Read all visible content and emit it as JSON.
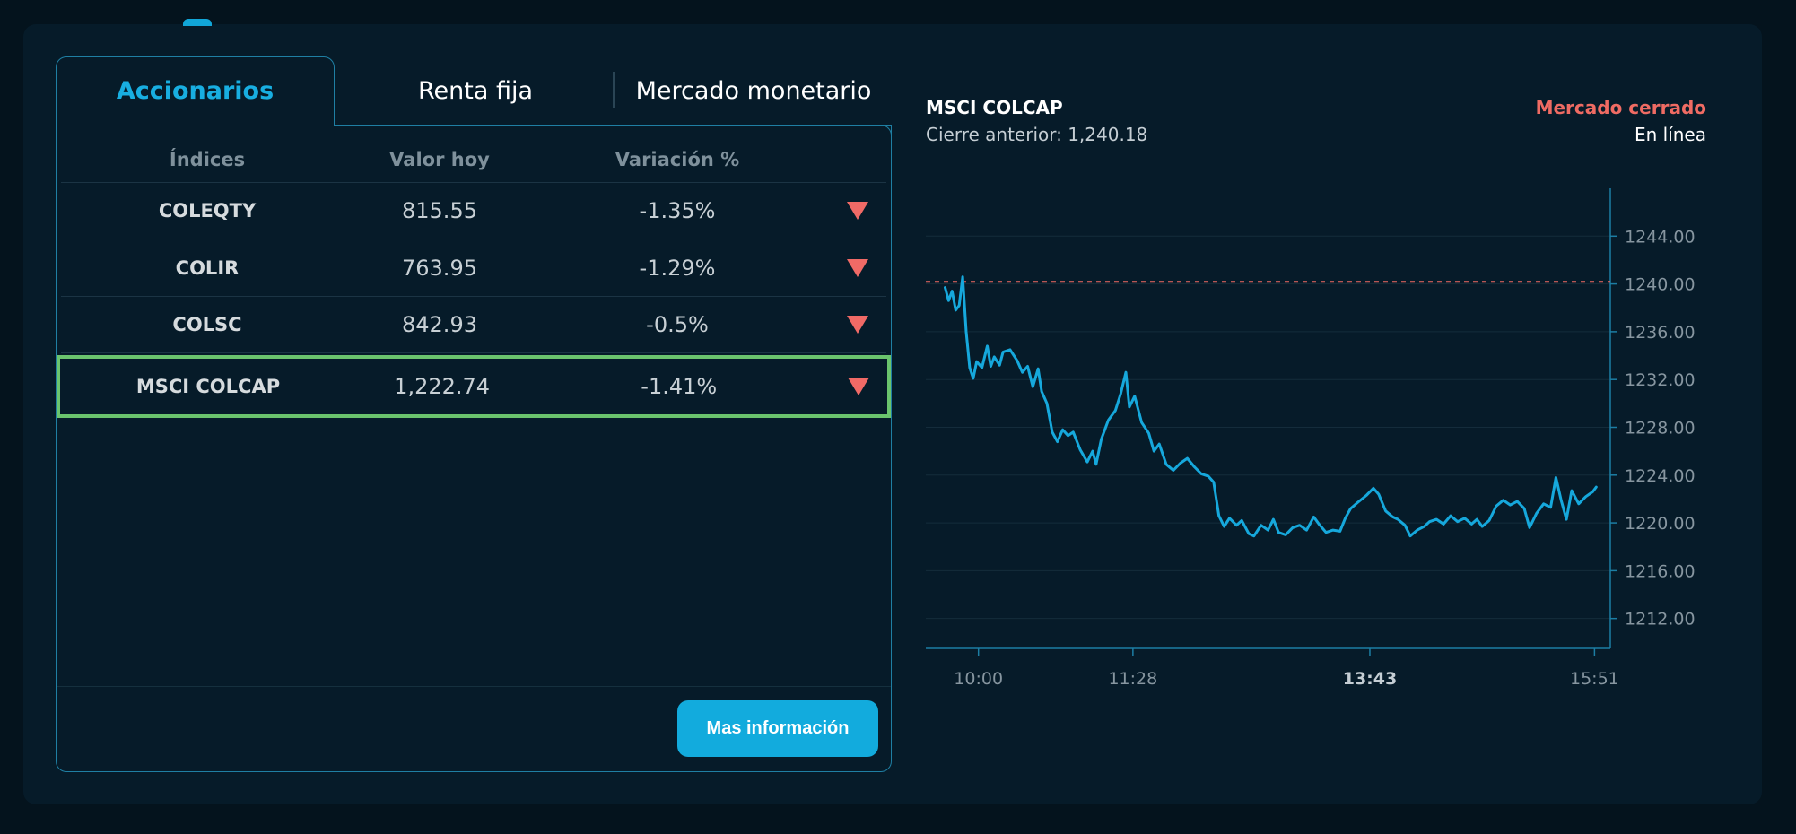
{
  "tabs": [
    {
      "label": "Accionarios",
      "active": true
    },
    {
      "label": "Renta fija",
      "active": false
    },
    {
      "label": "Mercado monetario",
      "active": false
    }
  ],
  "table": {
    "headers": [
      "Índices",
      "Valor hoy",
      "Variación %"
    ],
    "rows": [
      {
        "index": "COLEQTY",
        "value": "815.55",
        "variation": "-1.35%",
        "trend": "down"
      },
      {
        "index": "COLIR",
        "value": "763.95",
        "variation": "-1.29%",
        "trend": "down"
      },
      {
        "index": "COLSC",
        "value": "842.93",
        "variation": "-0.5%",
        "trend": "down"
      },
      {
        "index": "MSCI COLCAP",
        "value": "1,222.74",
        "variation": "-1.41%",
        "trend": "down",
        "selected": true
      }
    ],
    "more_button": "Mas información"
  },
  "chart_header": {
    "title": "MSCI COLCAP",
    "previous_close": "Cierre anterior: 1,240.18",
    "market_status": "Mercado cerrado",
    "online_label": "En línea"
  },
  "colors": {
    "line": "#16a8dc",
    "reference": "#ef6b63",
    "accent": "#18aee1",
    "down": "#f06a66",
    "selected_border": "#6ac46d"
  },
  "chart_data": {
    "type": "line",
    "title": "MSCI COLCAP",
    "reference_line": 1240.18,
    "ylim": [
      1211,
      1248
    ],
    "y_ticks": [
      "1212.00",
      "1216.00",
      "1220.00",
      "1224.00",
      "1228.00",
      "1232.00",
      "1236.00",
      "1240.00",
      "1244.00"
    ],
    "x_ticks": [
      {
        "label": "10:00",
        "time": "10:00",
        "bold": false
      },
      {
        "label": "11:28",
        "time": "11:28",
        "bold": false
      },
      {
        "label": "13:43",
        "time": "13:43",
        "bold": true
      },
      {
        "label": "15:51",
        "time": "15:51",
        "bold": false
      }
    ],
    "grid": true,
    "series": [
      {
        "values": [
          [
            "09:41",
            1239.7
          ],
          [
            "09:43",
            1238.6
          ],
          [
            "09:45",
            1239.4
          ],
          [
            "09:47",
            1237.8
          ],
          [
            "09:49",
            1238.2
          ],
          [
            "09:51",
            1240.6
          ],
          [
            "09:53",
            1236.0
          ],
          [
            "09:55",
            1233.0
          ],
          [
            "09:57",
            1232.1
          ],
          [
            "09:59",
            1233.5
          ],
          [
            "10:02",
            1233.0
          ],
          [
            "10:05",
            1234.8
          ],
          [
            "10:07",
            1233.1
          ],
          [
            "10:09",
            1233.9
          ],
          [
            "10:12",
            1233.2
          ],
          [
            "10:14",
            1234.3
          ],
          [
            "10:18",
            1234.5
          ],
          [
            "10:22",
            1233.6
          ],
          [
            "10:25",
            1232.6
          ],
          [
            "10:28",
            1233.1
          ],
          [
            "10:31",
            1231.4
          ],
          [
            "10:34",
            1232.9
          ],
          [
            "10:36",
            1231.0
          ],
          [
            "10:39",
            1230.0
          ],
          [
            "10:42",
            1227.6
          ],
          [
            "10:45",
            1226.8
          ],
          [
            "10:48",
            1227.8
          ],
          [
            "10:51",
            1227.3
          ],
          [
            "10:54",
            1227.6
          ],
          [
            "10:58",
            1226.1
          ],
          [
            "11:02",
            1225.1
          ],
          [
            "11:05",
            1226.0
          ],
          [
            "11:07",
            1224.9
          ],
          [
            "11:10",
            1227.0
          ],
          [
            "11:14",
            1228.6
          ],
          [
            "11:18",
            1229.4
          ],
          [
            "11:21",
            1230.8
          ],
          [
            "11:24",
            1232.6
          ],
          [
            "11:26",
            1229.7
          ],
          [
            "11:29",
            1230.6
          ],
          [
            "11:33",
            1228.4
          ],
          [
            "11:37",
            1227.5
          ],
          [
            "11:40",
            1226.0
          ],
          [
            "11:43",
            1226.6
          ],
          [
            "11:47",
            1224.9
          ],
          [
            "11:51",
            1224.4
          ],
          [
            "11:55",
            1225.0
          ],
          [
            "11:59",
            1225.4
          ],
          [
            "12:03",
            1224.7
          ],
          [
            "12:07",
            1224.1
          ],
          [
            "12:11",
            1223.9
          ],
          [
            "12:14",
            1223.4
          ],
          [
            "12:17",
            1220.6
          ],
          [
            "12:20",
            1219.7
          ],
          [
            "12:23",
            1220.4
          ],
          [
            "12:27",
            1219.8
          ],
          [
            "12:30",
            1220.2
          ],
          [
            "12:34",
            1219.1
          ],
          [
            "12:37",
            1218.9
          ],
          [
            "12:41",
            1219.8
          ],
          [
            "12:45",
            1219.4
          ],
          [
            "12:48",
            1220.3
          ],
          [
            "12:51",
            1219.2
          ],
          [
            "12:55",
            1219.0
          ],
          [
            "12:59",
            1219.6
          ],
          [
            "13:03",
            1219.8
          ],
          [
            "13:07",
            1219.4
          ],
          [
            "13:11",
            1220.5
          ],
          [
            "13:14",
            1219.9
          ],
          [
            "13:18",
            1219.2
          ],
          [
            "13:22",
            1219.4
          ],
          [
            "13:26",
            1219.3
          ],
          [
            "13:29",
            1220.4
          ],
          [
            "13:32",
            1221.2
          ],
          [
            "13:36",
            1221.7
          ],
          [
            "13:41",
            1222.3
          ],
          [
            "13:45",
            1222.9
          ],
          [
            "13:48",
            1222.4
          ],
          [
            "13:52",
            1221.0
          ],
          [
            "13:56",
            1220.5
          ],
          [
            "13:59",
            1220.3
          ],
          [
            "14:03",
            1219.8
          ],
          [
            "14:06",
            1218.9
          ],
          [
            "14:10",
            1219.4
          ],
          [
            "14:14",
            1219.7
          ],
          [
            "14:17",
            1220.1
          ],
          [
            "14:21",
            1220.3
          ],
          [
            "14:25",
            1219.9
          ],
          [
            "14:29",
            1220.6
          ],
          [
            "14:33",
            1220.1
          ],
          [
            "14:37",
            1220.4
          ],
          [
            "14:41",
            1219.9
          ],
          [
            "14:44",
            1220.3
          ],
          [
            "14:47",
            1219.7
          ],
          [
            "14:51",
            1220.2
          ],
          [
            "14:55",
            1221.4
          ],
          [
            "14:59",
            1221.9
          ],
          [
            "15:03",
            1221.5
          ],
          [
            "15:07",
            1221.8
          ],
          [
            "15:11",
            1221.2
          ],
          [
            "15:14",
            1219.6
          ],
          [
            "15:18",
            1220.8
          ],
          [
            "15:22",
            1221.6
          ],
          [
            "15:26",
            1221.3
          ],
          [
            "15:29",
            1223.8
          ],
          [
            "15:32",
            1221.9
          ],
          [
            "15:35",
            1220.3
          ],
          [
            "15:38",
            1222.7
          ],
          [
            "15:42",
            1221.6
          ],
          [
            "15:46",
            1222.2
          ],
          [
            "15:50",
            1222.6
          ],
          [
            "15:52",
            1223.0
          ]
        ]
      }
    ]
  }
}
